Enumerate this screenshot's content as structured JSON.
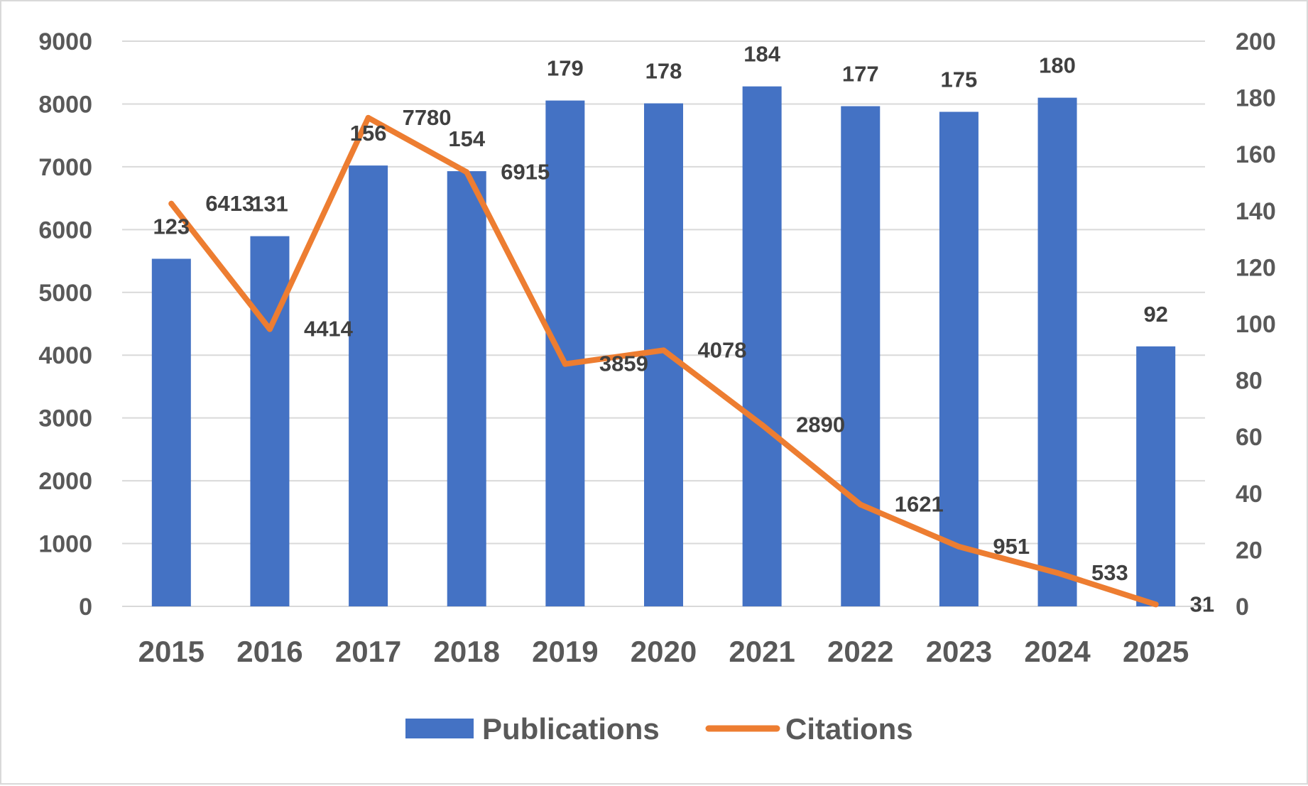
{
  "chart_data": {
    "type": "bar",
    "title": "",
    "xlabel": "",
    "ylabel": "",
    "categories": [
      "2015",
      "2016",
      "2017",
      "2018",
      "2019",
      "2020",
      "2021",
      "2022",
      "2023",
      "2024",
      "2025"
    ],
    "series": [
      {
        "name": "Publications",
        "type": "bar",
        "axis": "right",
        "color": "#4472C4",
        "values": [
          123,
          131,
          156,
          154,
          179,
          178,
          184,
          177,
          175,
          180,
          92
        ]
      },
      {
        "name": "Citations",
        "type": "line",
        "axis": "left",
        "color": "#ED7D31",
        "values": [
          6413,
          4414,
          7780,
          6915,
          3859,
          4078,
          2890,
          1621,
          951,
          533,
          31
        ]
      }
    ],
    "y_left": {
      "min": 0,
      "max": 9000,
      "ticks": [
        "0",
        "1000",
        "2000",
        "3000",
        "4000",
        "5000",
        "6000",
        "7000",
        "8000",
        "9000"
      ]
    },
    "y_right": {
      "min": 0,
      "max": 200,
      "ticks": [
        "0",
        "20",
        "40",
        "60",
        "80",
        "100",
        "120",
        "140",
        "160",
        "180",
        "200"
      ]
    },
    "gridlines": true,
    "gridline_color": "#d9d9d9",
    "legend_position": "bottom",
    "legend": [
      {
        "label": "Publications",
        "color": "#4472C4",
        "symbol": "bar"
      },
      {
        "label": "Citations",
        "color": "#ED7D31",
        "symbol": "line"
      }
    ]
  }
}
